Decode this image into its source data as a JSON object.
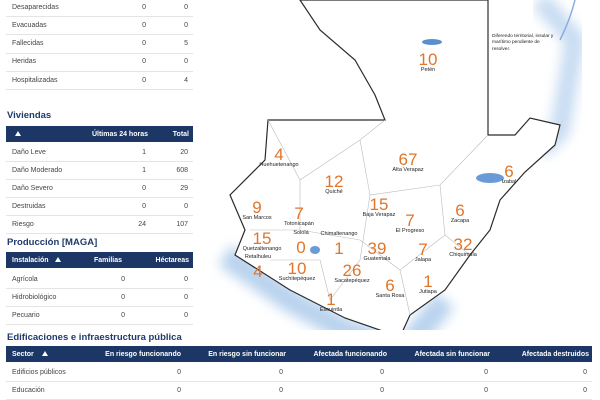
{
  "people_table": {
    "rows": [
      {
        "label": "Desaparecidas",
        "values": [
          0,
          0
        ]
      },
      {
        "label": "Evacuadas",
        "values": [
          0,
          0
        ]
      },
      {
        "label": "Fallecidas",
        "values": [
          0,
          5
        ]
      },
      {
        "label": "Heridas",
        "values": [
          0,
          0
        ]
      },
      {
        "label": "Hospitalizadas",
        "values": [
          0,
          4
        ]
      }
    ]
  },
  "viviendas": {
    "title": "Viviendas",
    "columns": [
      "Últimas 24 horas",
      "Total"
    ],
    "rows": [
      {
        "label": "Daño Leve",
        "values": [
          1,
          20
        ]
      },
      {
        "label": "Daño Moderado",
        "values": [
          1,
          608
        ]
      },
      {
        "label": "Daño Severo",
        "values": [
          0,
          29
        ]
      },
      {
        "label": "Destruidas",
        "values": [
          0,
          0
        ]
      },
      {
        "label": "Riesgo",
        "values": [
          24,
          107
        ]
      }
    ]
  },
  "produccion": {
    "title": "Producción [MAGA]",
    "columns": [
      "Instalación",
      "Familias",
      "Héctareas"
    ],
    "rows": [
      {
        "label": "Agrícola",
        "values": [
          0,
          0
        ]
      },
      {
        "label": "Hidrobiológico",
        "values": [
          0,
          0
        ]
      },
      {
        "label": "Pecuario",
        "values": [
          0,
          0
        ]
      }
    ]
  },
  "edificaciones": {
    "title": "Edificaciones e infraestructura pública",
    "columns": [
      "Sector",
      "En riesgo funcionando",
      "En riesgo sin funcionar",
      "Afectada funcionando",
      "Afectada sin funcionar",
      "Afectada destruidos"
    ],
    "rows": [
      {
        "label": "Edificios públicos",
        "values": [
          0,
          0,
          0,
          0,
          0
        ]
      },
      {
        "label": "Educación",
        "values": [
          0,
          0,
          0,
          0,
          0
        ]
      }
    ]
  },
  "map": {
    "note": "Diferendo territorial, insular y marítimo pendiente de resolver.",
    "departments": [
      {
        "name": "Petén",
        "value": 10
      },
      {
        "name": "Huehuetenango",
        "value": 4
      },
      {
        "name": "Quiché",
        "value": 12
      },
      {
        "name": "Alta Verapaz",
        "value": 67
      },
      {
        "name": "Izabal",
        "value": 6
      },
      {
        "name": "San Marcos",
        "value": 9
      },
      {
        "name": "Totonicapán",
        "value": 7
      },
      {
        "name": "Baja Verapaz",
        "value": 15
      },
      {
        "name": "El Progreso",
        "value": 7
      },
      {
        "name": "Zacapa",
        "value": 6
      },
      {
        "name": "Sololá",
        "value": 0
      },
      {
        "name": "Chimaltenango",
        "value": 1
      },
      {
        "name": "Quetzaltenango",
        "value": 15
      },
      {
        "name": "Guatemala",
        "value": 39
      },
      {
        "name": "Jalapa",
        "value": 7
      },
      {
        "name": "Chiquimula",
        "value": 32
      },
      {
        "name": "Retalhuleu",
        "value": 4
      },
      {
        "name": "Suchitepéquez",
        "value": 10
      },
      {
        "name": "Sacatepéquez",
        "value": 26
      },
      {
        "name": "Santa Rosa",
        "value": 6
      },
      {
        "name": "Jutiapa",
        "value": 1
      },
      {
        "name": "Escuintla",
        "value": 1
      }
    ]
  }
}
